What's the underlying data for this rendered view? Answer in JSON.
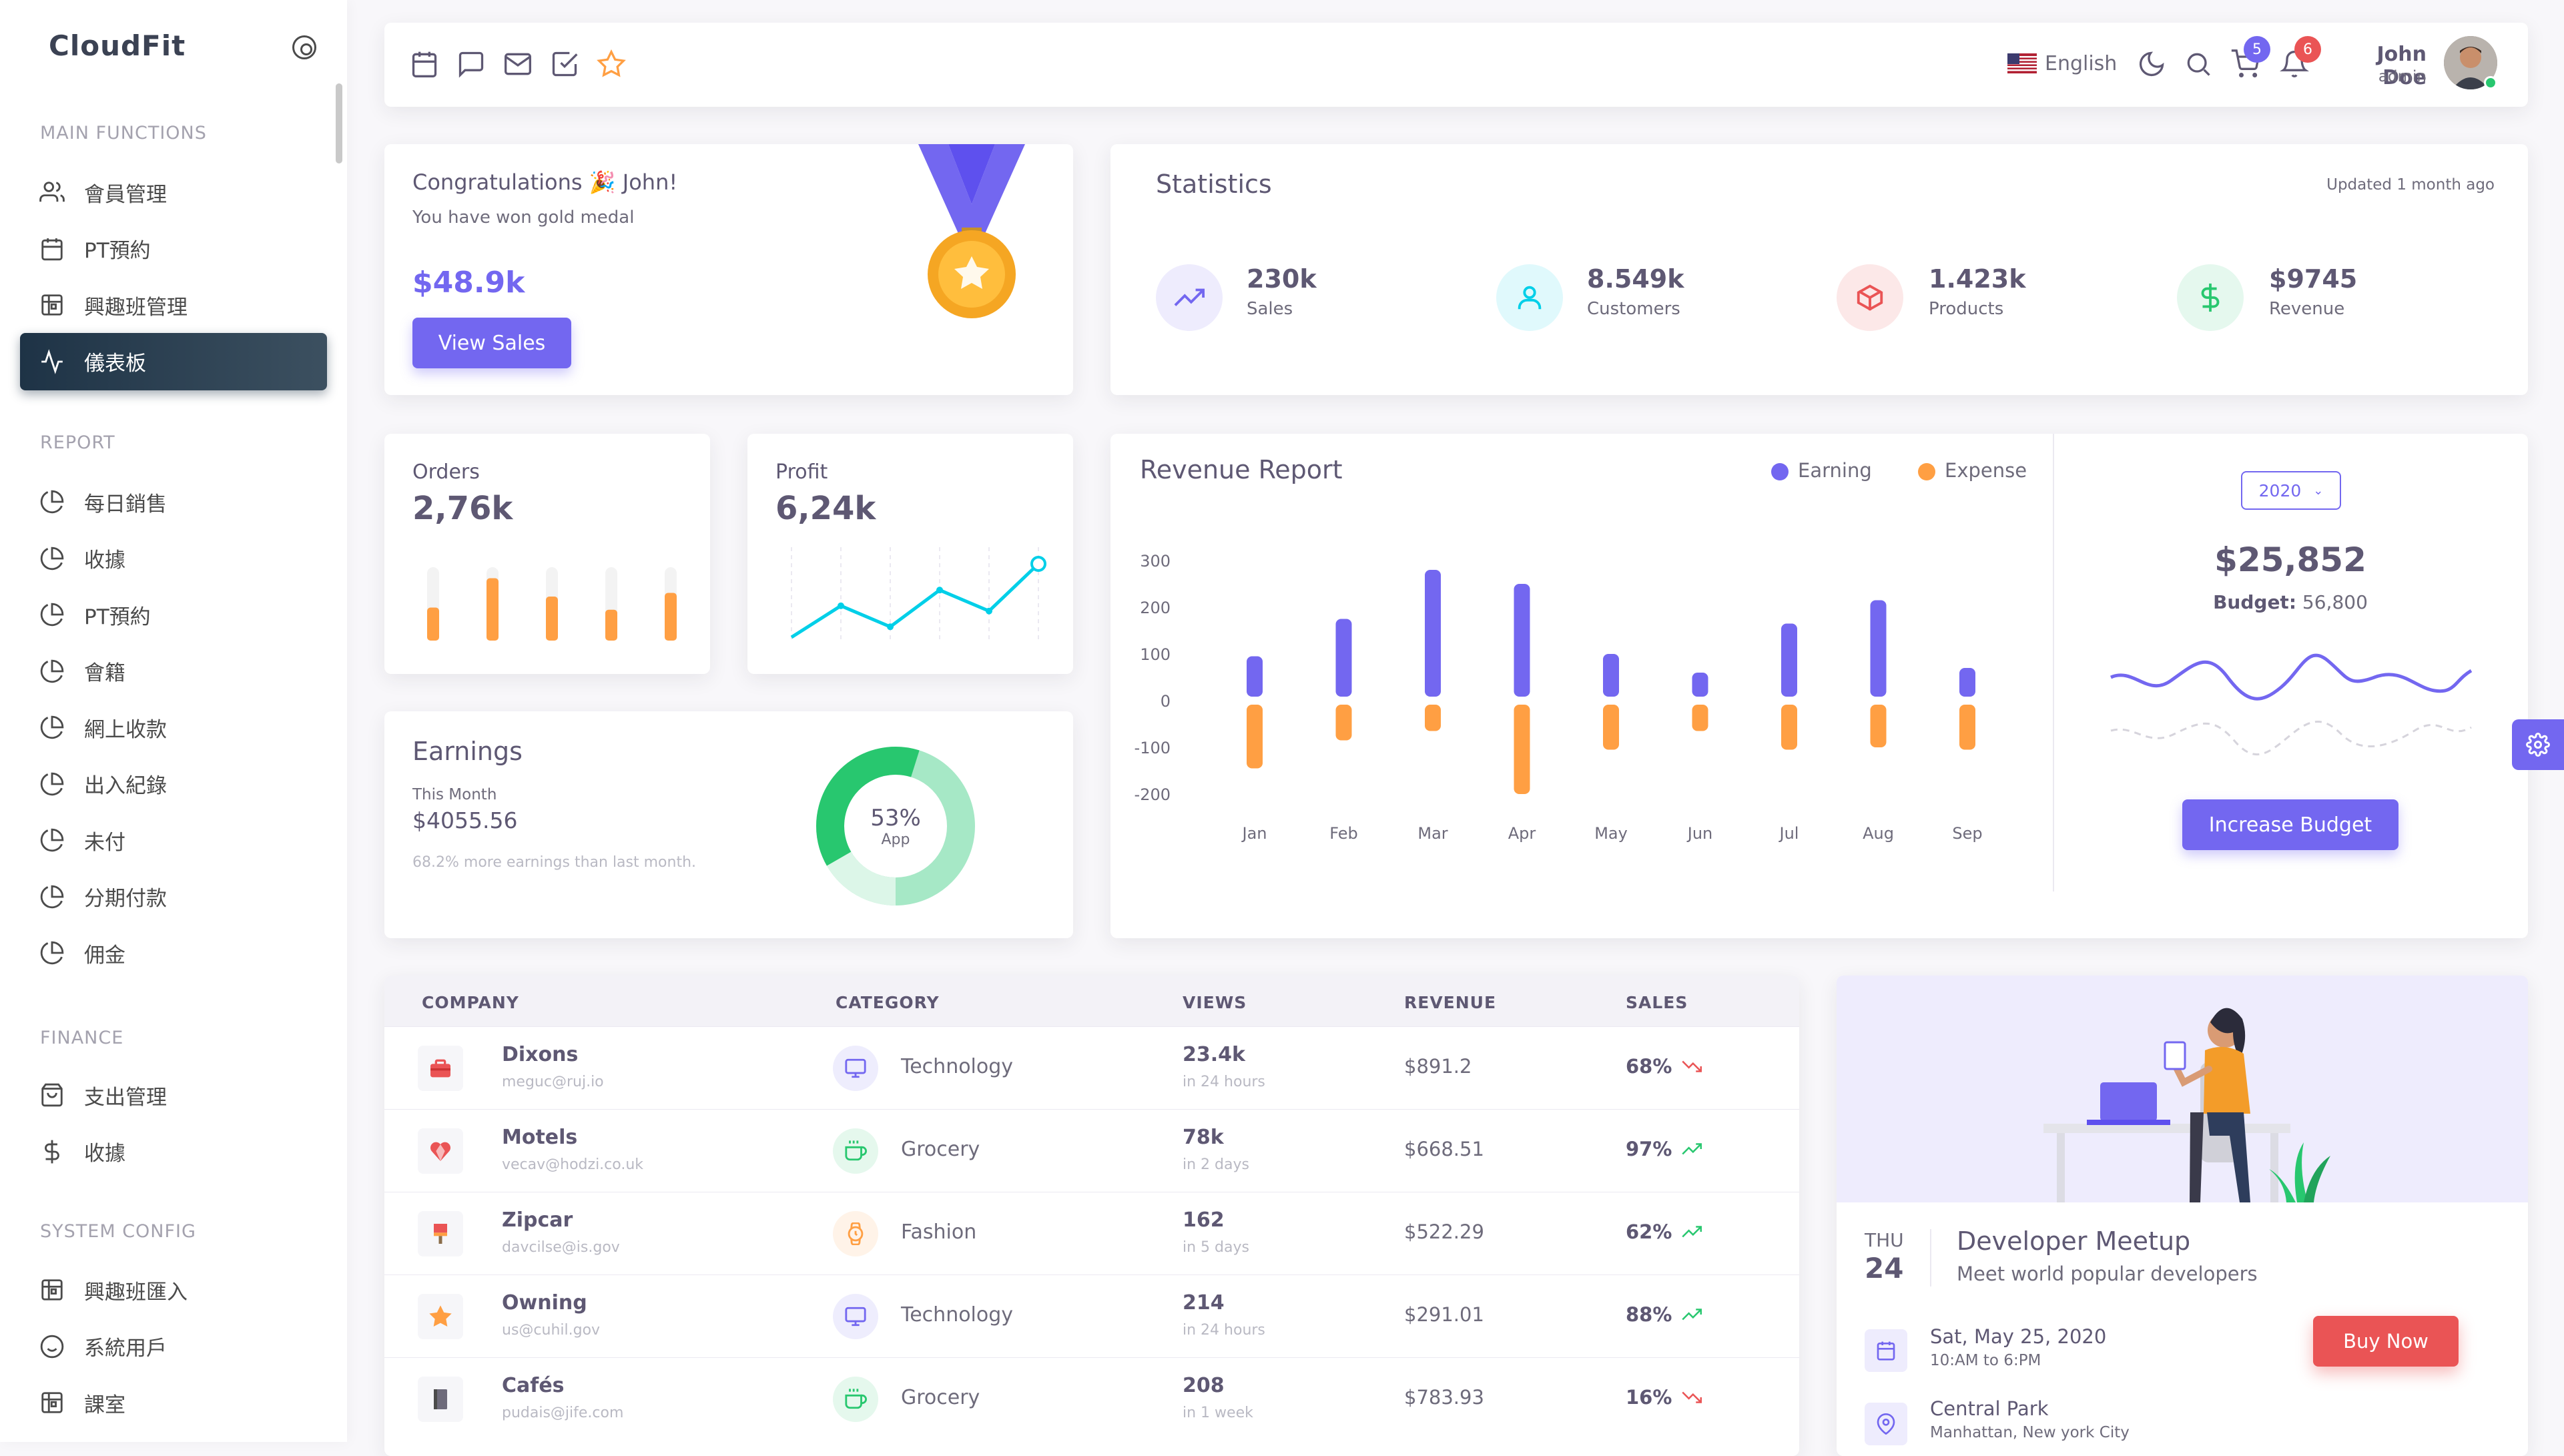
{
  "sidebar": {
    "brand": "CloudFit",
    "sections": [
      {
        "title": "MAIN FUNCTIONS",
        "items": [
          {
            "label": "會員管理",
            "icon": "users-icon"
          },
          {
            "label": "PT預約",
            "icon": "calendar-icon"
          },
          {
            "label": "興趣班管理",
            "icon": "grid-icon"
          },
          {
            "label": "儀表板",
            "icon": "activity-icon",
            "active": true
          }
        ]
      },
      {
        "title": "REPORT",
        "items": [
          {
            "label": "每日銷售",
            "icon": "pie-chart-icon"
          },
          {
            "label": "收據",
            "icon": "pie-chart-icon"
          },
          {
            "label": "PT預約",
            "icon": "pie-chart-icon"
          },
          {
            "label": "會籍",
            "icon": "pie-chart-icon"
          },
          {
            "label": "網上收款",
            "icon": "pie-chart-icon"
          },
          {
            "label": "出入紀錄",
            "icon": "pie-chart-icon"
          },
          {
            "label": "未付",
            "icon": "pie-chart-icon"
          },
          {
            "label": "分期付款",
            "icon": "pie-chart-icon"
          },
          {
            "label": "佣金",
            "icon": "pie-chart-icon"
          }
        ]
      },
      {
        "title": "FINANCE",
        "items": [
          {
            "label": "支出管理",
            "icon": "shopping-bag-icon"
          },
          {
            "label": "收據",
            "icon": "dollar-icon"
          }
        ]
      },
      {
        "title": "SYSTEM CONFIG",
        "items": [
          {
            "label": "興趣班匯入",
            "icon": "grid-icon"
          },
          {
            "label": "系統用戶",
            "icon": "smile-icon"
          },
          {
            "label": "課室",
            "icon": "grid-icon"
          }
        ]
      }
    ]
  },
  "navbar": {
    "language": "English",
    "cart_count": "5",
    "notification_count": "6",
    "user_name": "John Doe",
    "user_role": "admin"
  },
  "congrats": {
    "title": "Congratulations 🎉 John!",
    "subtitle": "You have won gold medal",
    "amount": "$48.9k",
    "button": "View Sales"
  },
  "statistics": {
    "title": "Statistics",
    "updated": "Updated 1 month ago",
    "items": [
      {
        "value": "230k",
        "label": "Sales",
        "icon": "trending-up-icon",
        "color": "#7367f0"
      },
      {
        "value": "8.549k",
        "label": "Customers",
        "icon": "user-icon",
        "color": "#00cfe8"
      },
      {
        "value": "1.423k",
        "label": "Products",
        "icon": "box-icon",
        "color": "#ea5455"
      },
      {
        "value": "$9745",
        "label": "Revenue",
        "icon": "dollar-icon",
        "color": "#28c76f"
      }
    ]
  },
  "orders": {
    "title": "Orders",
    "value": "2,76k",
    "bars": [
      0.45,
      0.85,
      0.6,
      0.42,
      0.65
    ]
  },
  "profit": {
    "title": "Profit",
    "value": "6,24k",
    "points": [
      0,
      30,
      10,
      45,
      25,
      70
    ]
  },
  "earnings": {
    "title": "Earnings",
    "period": "This Month",
    "amount": "$4055.56",
    "note": "68.2% more earnings than last month.",
    "donut_percent": "53%",
    "donut_label": "App",
    "donut_value": 53
  },
  "revenue_report": {
    "title": "Revenue Report",
    "legend": [
      "Earning",
      "Expense"
    ],
    "year": "2020",
    "total": "$25,852",
    "budget_label": "Budget:",
    "budget_value": "56,800",
    "button": "Increase Budget"
  },
  "chart_data": {
    "type": "bar",
    "title": "Revenue Report",
    "categories": [
      "Jan",
      "Feb",
      "Mar",
      "Apr",
      "May",
      "Jun",
      "Jul",
      "Aug",
      "Sep"
    ],
    "series": [
      {
        "name": "Earning",
        "color": "#7367f0",
        "values": [
          95,
          175,
          280,
          250,
          100,
          60,
          165,
          215,
          70
        ]
      },
      {
        "name": "Expense",
        "color": "#ff9f43",
        "values": [
          -145,
          -85,
          -65,
          -200,
          -105,
          -65,
          -105,
          -100,
          -105
        ]
      }
    ],
    "y_ticks": [
      "300",
      "200",
      "100",
      "0",
      "-100",
      "-200"
    ],
    "ylim": [
      -200,
      300
    ],
    "grid": false,
    "legend_position": "top-right"
  },
  "table": {
    "headers": [
      "COMPANY",
      "CATEGORY",
      "VIEWS",
      "REVENUE",
      "SALES"
    ],
    "rows": [
      {
        "company": "Dixons",
        "email": "meguc@ruj.io",
        "logo": "toolbox-icon",
        "category": "Technology",
        "cat_icon": "monitor-icon",
        "cat_color": "#7367f0",
        "views": "23.4k",
        "period": "in 24 hours",
        "revenue": "$891.2",
        "sales": "68%",
        "trend": "down"
      },
      {
        "company": "Motels",
        "email": "vecav@hodzi.co.uk",
        "logo": "heart-icon",
        "category": "Grocery",
        "cat_icon": "coffee-icon",
        "cat_color": "#28c76f",
        "views": "78k",
        "period": "in 2 days",
        "revenue": "$668.51",
        "sales": "97%",
        "trend": "up"
      },
      {
        "company": "Zipcar",
        "email": "davcilse@is.gov",
        "logo": "brush-icon",
        "category": "Fashion",
        "cat_icon": "watch-icon",
        "cat_color": "#ff9f43",
        "views": "162",
        "period": "in 5 days",
        "revenue": "$522.29",
        "sales": "62%",
        "trend": "up"
      },
      {
        "company": "Owning",
        "email": "us@cuhil.gov",
        "logo": "star-icon",
        "category": "Technology",
        "cat_icon": "monitor-icon",
        "cat_color": "#7367f0",
        "views": "214",
        "period": "in 24 hours",
        "revenue": "$291.01",
        "sales": "88%",
        "trend": "up"
      },
      {
        "company": "Cafés",
        "email": "pudais@jife.com",
        "logo": "book-icon",
        "category": "Grocery",
        "cat_icon": "coffee-icon",
        "cat_color": "#28c76f",
        "views": "208",
        "period": "in 1 week",
        "revenue": "$783.93",
        "sales": "16%",
        "trend": "down"
      }
    ]
  },
  "meetup": {
    "day": "THU",
    "date": "24",
    "title": "Developer Meetup",
    "subtitle": "Meet world popular developers",
    "button": "Buy Now",
    "when": "Sat, May 25, 2020",
    "time": "10:AM to 6:PM",
    "place": "Central Park",
    "address": "Manhattan, New york City"
  }
}
